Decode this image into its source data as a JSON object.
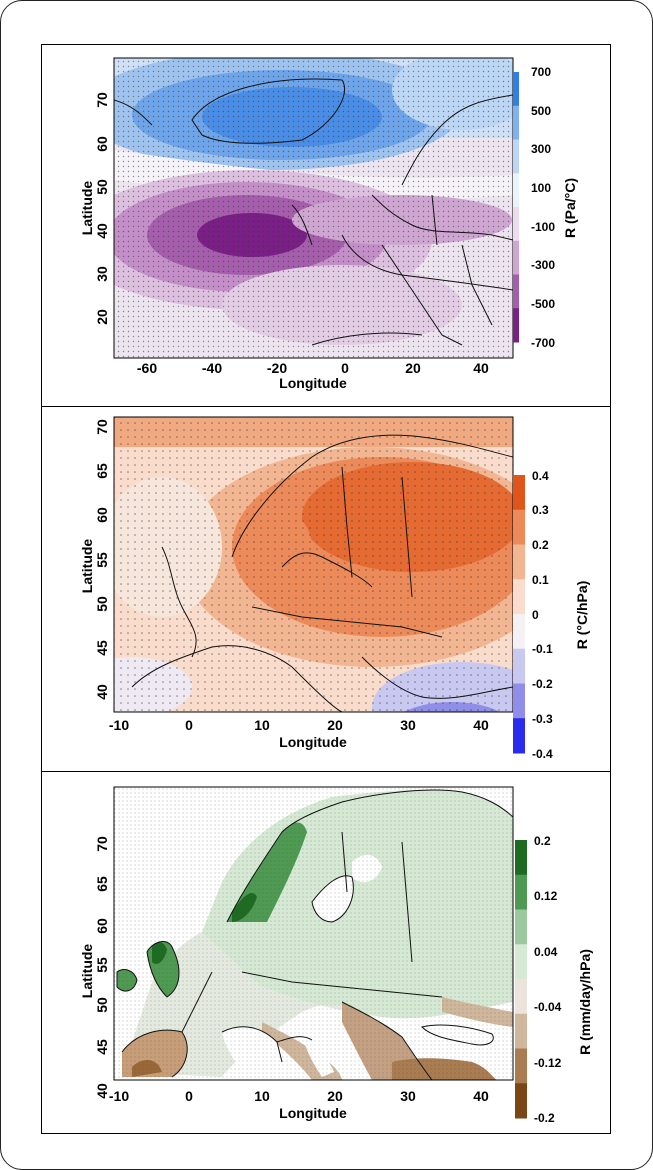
{
  "figure": {
    "panels": [
      {
        "id": "pressure",
        "xlabel": "Longitude",
        "ylabel": "Latitude",
        "colorbar_label": "R (Pa/°C)",
        "x_ticks": [
          "-60",
          "-40",
          "-20",
          "0",
          "20",
          "40"
        ],
        "y_ticks": [
          "70",
          "60",
          "50",
          "40",
          "30",
          "20"
        ],
        "colorbar_ticks": [
          "700",
          "500",
          "300",
          "100",
          "-100",
          "-300",
          "-500",
          "-700"
        ],
        "colors": [
          "#2f7fe6",
          "#7fb2ee",
          "#bcd6f5",
          "#eaf2fb",
          "#ecdcec",
          "#cfa6d2",
          "#a45eab",
          "#7a1f86"
        ]
      },
      {
        "id": "temperature",
        "xlabel": "Longitude",
        "ylabel": "Latitude",
        "colorbar_label": "R (°C/hPa)",
        "x_ticks": [
          "-10",
          "0",
          "10",
          "20",
          "30",
          "40"
        ],
        "y_ticks": [
          "70",
          "65",
          "60",
          "55",
          "50",
          "45",
          "40"
        ],
        "colorbar_ticks": [
          "0.4",
          "0.3",
          "0.2",
          "0.1",
          "0",
          "-0.1",
          "-0.2",
          "-0.3",
          "-0.4"
        ],
        "colors": [
          "#e0561a",
          "#ec8a5a",
          "#f3b693",
          "#f9dccb",
          "#f3f1f4",
          "#c9c8f0",
          "#8f8ee8",
          "#2b2bef"
        ]
      },
      {
        "id": "precipitation",
        "xlabel": "Longitude",
        "ylabel": "Latitude",
        "colorbar_label": "R (mm/day/hPa)",
        "x_ticks": [
          "-10",
          "0",
          "10",
          "20",
          "30",
          "40"
        ],
        "y_ticks": [
          "70",
          "65",
          "60",
          "55",
          "50",
          "45",
          "40"
        ],
        "colorbar_ticks": [
          "0.2",
          "0.12",
          "0.04",
          "-0.04",
          "-0.12",
          "-0.2"
        ],
        "colors": [
          "#1e6b22",
          "#4f9a53",
          "#9bc89d",
          "#d6e9d4",
          "#ece4dc",
          "#d0b69c",
          "#aa7c52",
          "#7a4616"
        ]
      }
    ]
  }
}
